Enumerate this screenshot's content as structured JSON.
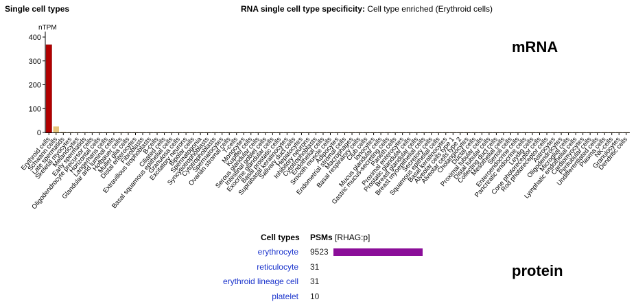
{
  "header": {
    "left_title": "Single cell types",
    "center_title_bold": "RNA single cell type specificity:",
    "center_title_rest": " Cell type enriched (Erythroid cells)"
  },
  "labels": {
    "mrna": "mRNA",
    "protein": "protein"
  },
  "colors": {
    "highlight_bar": "#b30000",
    "secondary_bar": "#e6c47a",
    "other_bar": "#d9c9a3",
    "psm_bar": "#8b0e99",
    "link": "#1a33cc"
  },
  "chart_data": {
    "type": "bar",
    "ylabel": "nTPM",
    "ylim": [
      0,
      400
    ],
    "yticks": [
      0,
      100,
      200,
      300,
      400
    ],
    "categories": [
      "Erythroid cells",
      "Schwann cells",
      "Late spermatids",
      "Skeletal myocytes",
      "Melanocytes",
      "Early spermatids",
      "Oligodendrocyte precursor cells",
      "Horizontal cells",
      "Langerhans cells",
      "Glandular and luminal cells",
      "Hofbauer cells",
      "Muller glia cells",
      "Distal enterocytes",
      "Fibroblasts",
      "Extravillous trophoblasts",
      "B-cells",
      "Ciliated cells",
      "Basal squamous epithelial cells",
      "Granulosa cells",
      "Excitatory neurons",
      "Bipolar cells",
      "Spermatogonia",
      "Syncytiotrophoblasts",
      "Cytotrophoblasts",
      "Spermatocytes",
      "Ovarian stromal cells",
      "T-cells",
      "Monocytes",
      "Kupffer cells",
      "Serous glandular cells",
      "Intestinal goblet cells",
      "Exocrine glandular cells",
      "Basal prostatic cells",
      "Suprabasal keratinocytes",
      "Salivary duct cells",
      "Hepatocytes",
      "Inhibitory neurons",
      "Cytotrophoblasts",
      "Endothelial cells",
      "Smooth muscle cells",
      "Adipocytes",
      "Endometrial stromal cells",
      "Macrophages",
      "Basal respiratory cells",
      "Club cells",
      "Ionocytes",
      "Mucus glandular cells",
      "Gastric mucus-secreting cells",
      "Paneth cells",
      "Proximal enterocytes",
      "Prostatic glandular cells",
      "Breast glandular cells",
      "Breast myoepithelial cells",
      "Secretory cells",
      "Squamous epithelial cells",
      "Basal keratinocytes",
      "Alveolar cells type 1",
      "Alveolar cells type 2",
      "Cholangiocytes",
      "Ductal cells",
      "Proximal tubular cells",
      "Distal tubular cells",
      "Collecting duct cells",
      "Mesothelial cells",
      "Sertoli cells",
      "Enteroendocrine cells",
      "Pancreatic endocrine cells",
      "Leydig cells",
      "Cone photoreceptor cells",
      "Rod photoreceptor cells",
      "Astrocytes",
      "Oligodendrocytes",
      "Microglial cells",
      "Lymphatic endothelial cells",
      "Cardiomyocytes",
      "Peritubular cells",
      "Undifferentiated cells",
      "Plasma cells",
      "NK-cells",
      "Granulocytes",
      "Dendritic cells"
    ],
    "values": [
      368,
      25,
      3,
      2,
      1.5,
      1,
      1,
      1,
      0.8,
      0.8,
      0.7,
      0.6,
      0.6,
      0.5,
      0.5,
      0.5,
      0.5,
      0.4,
      0.4,
      0.4,
      0.4,
      0.4,
      0.3,
      0.3,
      0.3,
      0.3,
      0.3,
      0.3,
      0.3,
      0.3,
      0.3,
      0.2,
      0.2,
      0.2,
      0.2,
      0.2,
      0.2,
      0.2,
      0.2,
      0.2,
      0.2,
      0.2,
      0.2,
      0.2,
      0.2,
      0.2,
      0.2,
      0.2,
      0.2,
      0.2,
      0.2,
      0.2,
      0.2,
      0.2,
      0.2,
      0.2,
      0.2,
      0.1,
      0.1,
      0.1,
      0.1,
      0.1,
      0.1,
      0.1,
      0.1,
      0.1,
      0.1,
      0.1,
      0.1,
      0.1,
      0.1,
      0.1,
      0.1,
      0.1,
      0.1,
      0.1,
      0.1,
      0.1,
      0.1,
      0.1,
      0.1
    ],
    "grid": false,
    "legend": "none"
  },
  "protein_table": {
    "col_cell_types": "Cell types",
    "col_psms": "PSMs",
    "col_psms_sub": "[RHAG:p]",
    "max_psm": 9523,
    "rows": [
      {
        "label": "erythrocyte",
        "value": "9523",
        "psm": 9523
      },
      {
        "label": "reticulocyte",
        "value": "31",
        "psm": 31
      },
      {
        "label": "erythroid lineage cell",
        "value": "31",
        "psm": 31
      },
      {
        "label": "platelet",
        "value": "10",
        "psm": 10
      }
    ]
  }
}
